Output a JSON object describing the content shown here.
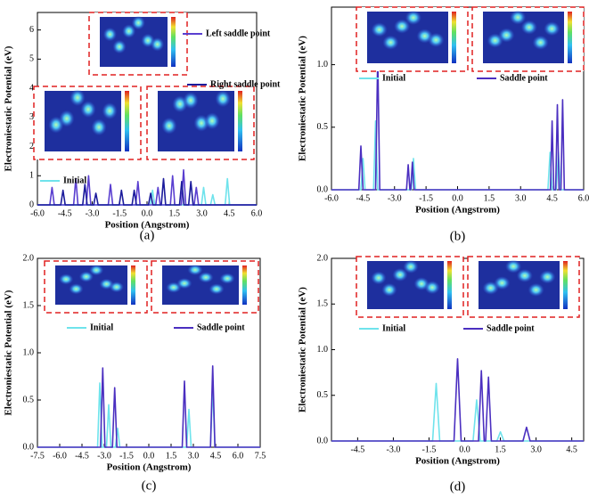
{
  "chart_data": [
    {
      "type": "line",
      "panel_label": "(a)",
      "xlabel": "Position (Angstrom)",
      "ylabel": "Electroniestatic Potential (eV)",
      "xlim": [
        -6,
        6
      ],
      "ylim": [
        0,
        6.6
      ],
      "xticks": [
        {
          "value": -6,
          "label": "-6.0"
        },
        {
          "value": -4.5,
          "label": "-4.5"
        },
        {
          "value": -3,
          "label": "-3.0"
        },
        {
          "value": -1.5,
          "label": "-1.5"
        },
        {
          "value": 0,
          "label": "0.0"
        },
        {
          "value": 1.5,
          "label": "1.5"
        },
        {
          "value": 3,
          "label": "3.0"
        },
        {
          "value": 4.5,
          "label": "4.5"
        },
        {
          "value": 6,
          "label": "6.0"
        }
      ],
      "yticks": [
        0,
        1,
        2,
        3,
        4,
        5,
        6
      ],
      "series": [
        {
          "name": "Initial",
          "color": "#6fe3ec",
          "x": [
            -6,
            0.18,
            0.3,
            0.42,
            2.98,
            3.1,
            3.22,
            3.48,
            3.6,
            3.72,
            4.28,
            4.4,
            4.52,
            6
          ],
          "values": [
            0,
            0,
            0.5,
            0,
            0,
            0.6,
            0,
            0,
            0.35,
            0,
            0,
            0.9,
            0,
            0
          ]
        },
        {
          "name": "Left saddle point",
          "color": "#5a3fd0",
          "x": [
            -6,
            -5.32,
            -5.2,
            -5.08,
            -4.02,
            -3.9,
            -3.78,
            -3.32,
            -3.2,
            -3.08,
            -2.12,
            -2.0,
            -1.88,
            -0.62,
            -0.5,
            -0.38,
            0.48,
            0.6,
            0.72,
            1.28,
            1.4,
            1.52,
            1.88,
            2.0,
            2.12,
            2.58,
            2.7,
            2.82,
            6
          ],
          "values": [
            0,
            0,
            0.6,
            0,
            0,
            0.9,
            0,
            0,
            1.0,
            0,
            0,
            0.7,
            0,
            0,
            0.8,
            0,
            0,
            0.6,
            0,
            0,
            1.0,
            0,
            0,
            1.2,
            0,
            0,
            0.6,
            0,
            0
          ]
        },
        {
          "name": "Right saddle point",
          "color": "#1c1c9c",
          "x": [
            -6,
            -4.72,
            -4.6,
            -4.48,
            -3.52,
            -3.4,
            -3.28,
            -2.92,
            -2.8,
            -2.68,
            -1.52,
            -1.4,
            -1.28,
            -0.82,
            -0.7,
            -0.58,
            0.08,
            0.2,
            0.32,
            0.78,
            0.9,
            1.02,
            1.78,
            1.9,
            2.02,
            2.28,
            2.4,
            2.52,
            6
          ],
          "values": [
            0,
            0,
            0.5,
            0,
            0,
            0.7,
            0,
            0,
            0.4,
            0,
            0,
            0.5,
            0,
            0,
            0.5,
            0,
            0,
            0.4,
            0,
            0,
            0.9,
            0,
            0,
            0.8,
            0,
            0,
            0.8,
            0,
            0
          ]
        }
      ]
    },
    {
      "type": "line",
      "panel_label": "(b)",
      "xlabel": "Position (Angstrom)",
      "ylabel": "Electroniestatic Potential (eV)",
      "xlim": [
        -6,
        6
      ],
      "ylim": [
        0,
        1.46
      ],
      "xticks": [
        {
          "value": -6,
          "label": "-6.0"
        },
        {
          "value": -4.5,
          "label": "-4.5"
        },
        {
          "value": -3,
          "label": "-3.0"
        },
        {
          "value": -1.5,
          "label": "-1.5"
        },
        {
          "value": 0,
          "label": "0.0"
        },
        {
          "value": 1.5,
          "label": "1.5"
        },
        {
          "value": 3,
          "label": "3.0"
        },
        {
          "value": 4.5,
          "label": "4.5"
        },
        {
          "value": 6,
          "label": "6.0"
        }
      ],
      "yticks": [
        {
          "value": 0,
          "label": "0.0"
        },
        0.5,
        {
          "value": 1,
          "label": "1.0"
        }
      ],
      "series": [
        {
          "name": "Initial",
          "color": "#6fe3ec",
          "x": [
            -6,
            -4.6,
            -4.5,
            -4.4,
            -4.0,
            -3.9,
            -3.8,
            -2.2,
            -2.1,
            -2.0,
            4.3,
            4.4,
            4.5,
            4.7,
            4.8,
            4.9,
            6
          ],
          "values": [
            0,
            0,
            0.25,
            0,
            0,
            0.55,
            0,
            0,
            0.25,
            0,
            0,
            0.3,
            0,
            0,
            0.3,
            0,
            0
          ]
        },
        {
          "name": "Saddle point",
          "color": "#4b2fc0",
          "x": [
            -6,
            -4.7,
            -4.6,
            -4.5,
            -3.9,
            -3.8,
            -3.7,
            -2.43,
            -2.35,
            -2.27,
            -2.23,
            -2.15,
            -2.07,
            4.42,
            4.5,
            4.58,
            4.67,
            4.75,
            4.83,
            4.92,
            5.0,
            5.08,
            6
          ],
          "values": [
            0,
            0,
            0.35,
            0,
            0,
            1.08,
            0,
            0,
            0.2,
            0,
            0,
            0.22,
            0,
            0,
            0.55,
            0,
            0,
            0.68,
            0,
            0,
            0.72,
            0,
            0
          ]
        }
      ]
    },
    {
      "type": "line",
      "panel_label": "(c)",
      "xlabel": "Position (Angstrom)",
      "ylabel": "Electroniestatic Potential (eV)",
      "xlim": [
        -7.5,
        7.5
      ],
      "ylim": [
        0,
        2.0
      ],
      "xticks": [
        -7.5,
        {
          "value": -6,
          "label": "-6.0"
        },
        -4.5,
        {
          "value": -3,
          "label": "-3.0"
        },
        -1.5,
        {
          "value": 0,
          "label": "0.0"
        },
        1.5,
        {
          "value": 3,
          "label": "3.0"
        },
        4.5,
        {
          "value": 6,
          "label": "6.0"
        },
        7.5
      ],
      "yticks": [
        {
          "value": 0,
          "label": "0.0"
        },
        0.5,
        {
          "value": 1,
          "label": "1.0"
        },
        1.5,
        {
          "value": 2,
          "label": "2.0"
        }
      ],
      "series": [
        {
          "name": "Initial",
          "color": "#6fe3ec",
          "x": [
            -7.5,
            -3.45,
            -3.3,
            -3.15,
            -2.85,
            -2.7,
            -2.55,
            -2.25,
            -2.1,
            -1.95,
            2.55,
            2.7,
            2.85,
            4.15,
            4.3,
            4.45,
            7.5
          ],
          "values": [
            0,
            0,
            0.68,
            0,
            0,
            0.45,
            0,
            0,
            0.2,
            0,
            0,
            0.4,
            0,
            0,
            0.65,
            0,
            0
          ]
        },
        {
          "name": "Saddle point",
          "color": "#4b2fc0",
          "x": [
            -7.5,
            -3.25,
            -3.1,
            -2.95,
            -2.45,
            -2.3,
            -2.15,
            2.25,
            2.4,
            2.55,
            4.15,
            4.3,
            4.45,
            7.5
          ],
          "values": [
            0,
            0,
            0.84,
            0,
            0,
            0.63,
            0,
            0,
            0.7,
            0,
            0,
            0.86,
            0,
            0
          ]
        }
      ]
    },
    {
      "type": "line",
      "panel_label": "(d)",
      "xlabel": "Position (Angstrom)",
      "ylabel": "Electroniestatic Potential (eV)",
      "xlim": [
        -5.6,
        5.0
      ],
      "ylim": [
        0,
        2.0
      ],
      "xticks": [
        -4.5,
        {
          "value": -3,
          "label": "-3.0"
        },
        -1.5,
        {
          "value": 0,
          "label": "0.0"
        },
        1.5,
        {
          "value": 3,
          "label": "3.0"
        },
        4.5
      ],
      "yticks": [
        {
          "value": 0,
          "label": "0.0"
        },
        0.5,
        {
          "value": 1,
          "label": "1.0"
        },
        1.5,
        {
          "value": 2,
          "label": "2.0"
        }
      ],
      "series": [
        {
          "name": "Initial",
          "color": "#6fe3ec",
          "x": [
            -5.6,
            -1.35,
            -1.2,
            -1.05,
            0.35,
            0.5,
            0.65,
            1.35,
            1.5,
            1.65,
            5.0
          ],
          "values": [
            0,
            0,
            0.63,
            0,
            0,
            0.45,
            0,
            0,
            0.1,
            0,
            0
          ]
        },
        {
          "name": "Saddle point",
          "color": "#4b2fc0",
          "x": [
            -5.6,
            -0.45,
            -0.3,
            -0.15,
            0.58,
            0.7,
            0.82,
            0.88,
            1.0,
            1.12,
            2.45,
            2.6,
            2.75,
            5.0
          ],
          "values": [
            0,
            0,
            0.9,
            0,
            0,
            0.77,
            0,
            0,
            0.7,
            0,
            0,
            0.15,
            0,
            0
          ]
        }
      ]
    }
  ]
}
